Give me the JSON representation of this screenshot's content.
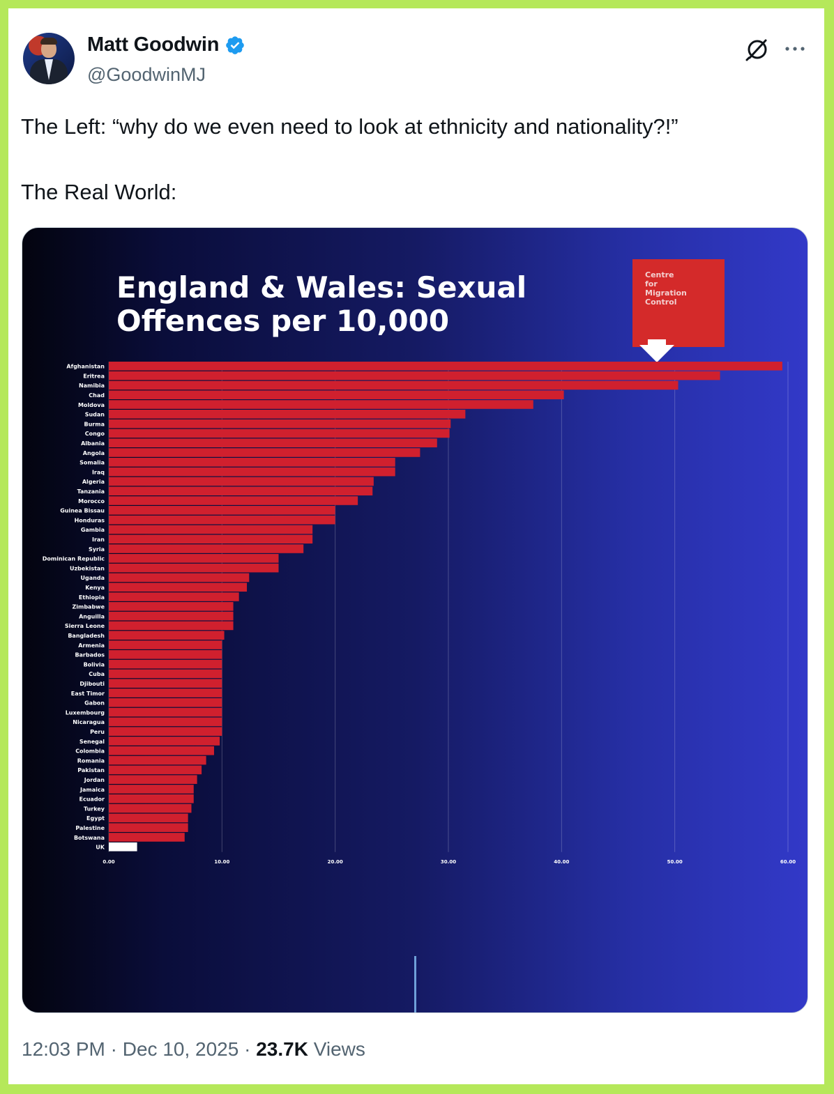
{
  "author": {
    "name": "Matt Goodwin",
    "handle": "@GoodwinMJ",
    "verified_icon": "verified-badge-icon",
    "verified_color": "#1d9bf0"
  },
  "header_icons": {
    "grok": "grok-icon",
    "more": "more-icon"
  },
  "tweet": {
    "line1": "The Left: “why do we even need to look at ethnicity and nationality?!”",
    "line2": "The Real World:"
  },
  "footer": {
    "time": "12:03 PM",
    "sep1": " · ",
    "date": "Dec 10, 2025",
    "sep2": " · ",
    "views_count": "23.7K",
    "views_label": " Views"
  },
  "chart_data": {
    "type": "bar",
    "orientation": "horizontal",
    "title": "England & Wales: Sexual Offences per 10,000",
    "logo_text": "Centre for Migration Control",
    "xlim": [
      0,
      60
    ],
    "xticks": [
      "0.00",
      "10.00",
      "20.00",
      "30.00",
      "40.00",
      "50.00",
      "60.00"
    ],
    "grid": true,
    "bar_color": "#d0202e",
    "highlight_color": "#ffffff",
    "highlight_category": "UK",
    "categories": [
      "Afghanistan",
      "Eritrea",
      "Namibia",
      "Chad",
      "Moldova",
      "Sudan",
      "Burma",
      "Congo",
      "Albania",
      "Angola",
      "Somalia",
      "Iraq",
      "Algeria",
      "Tanzania",
      "Morocco",
      "Guinea Bissau",
      "Honduras",
      "Gambia",
      "Iran",
      "Syria",
      "Dominican Republic",
      "Uzbekistan",
      "Uganda",
      "Kenya",
      "Ethiopia",
      "Zimbabwe",
      "Anguilla",
      "Sierra Leone",
      "Bangladesh",
      "Armenia",
      "Barbados",
      "Bolivia",
      "Cuba",
      "Djibouti",
      "East Timor",
      "Gabon",
      "Luxembourg",
      "Nicaragua",
      "Peru",
      "Senegal",
      "Colombia",
      "Romania",
      "Pakistan",
      "Jordan",
      "Jamaica",
      "Ecuador",
      "Turkey",
      "Egypt",
      "Palestine",
      "Botswana",
      "UK"
    ],
    "values": [
      59.5,
      54.0,
      50.3,
      40.2,
      37.5,
      31.5,
      30.2,
      30.1,
      29.0,
      27.5,
      25.3,
      25.3,
      23.4,
      23.3,
      22.0,
      20.0,
      20.0,
      18.0,
      18.0,
      17.2,
      15.0,
      15.0,
      12.4,
      12.2,
      11.5,
      11.0,
      11.0,
      11.0,
      10.2,
      10.0,
      10.0,
      10.0,
      10.0,
      10.0,
      10.0,
      10.0,
      10.0,
      10.0,
      10.0,
      9.8,
      9.3,
      8.6,
      8.2,
      7.8,
      7.5,
      7.5,
      7.3,
      7.0,
      7.0,
      6.7,
      2.5
    ]
  }
}
